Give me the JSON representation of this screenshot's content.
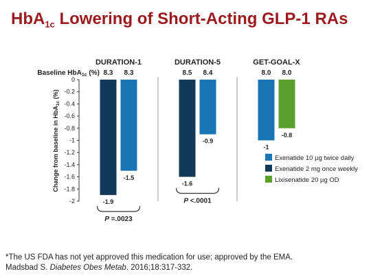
{
  "slide": {
    "title_prefix": "HbA",
    "title_sub": "1c",
    "title_suffix": " Lowering of Short-Acting GLP-1 RAs"
  },
  "chart_data": {
    "type": "bar",
    "ylabel_prefix": "Change from baseline in HbA",
    "ylabel_sub": "1c",
    "ylabel_suffix": " (%)",
    "ylim": [
      -2,
      0
    ],
    "yticks": [
      "0",
      "-0.2",
      "-0.4",
      "-0.6",
      "-0.8",
      "-1",
      "-1.2",
      "-1.4",
      "-1.6",
      "-1.8",
      "-2"
    ],
    "baseline_label_prefix": "Baseline HbA",
    "baseline_label_sub": "1c",
    "baseline_label_suffix": " (%)",
    "colors": {
      "Exenatide 10 µg twice daily": "#1a75b5",
      "Exenatide 2 mg once weekly": "#12395a",
      "Lixisenatide 20 µg OD": "#5aa02c"
    },
    "groups": [
      {
        "name": "DURATION-1",
        "bars": [
          {
            "series": "Exenatide 2 mg once weekly",
            "value": -1.9,
            "value_label": "-1.9",
            "baseline": "8.3"
          },
          {
            "series": "Exenatide 10 µg twice daily",
            "value": -1.5,
            "value_label": "-1.5",
            "baseline": "8.3"
          }
        ],
        "p_value": "P =.0023"
      },
      {
        "name": "DURATION-5",
        "bars": [
          {
            "series": "Exenatide 2 mg once weekly",
            "value": -1.6,
            "value_label": "-1.6",
            "baseline": "8.5"
          },
          {
            "series": "Exenatide 10 µg twice daily",
            "value": -0.9,
            "value_label": "-0.9",
            "baseline": "8.4"
          }
        ],
        "p_value": "P <.0001"
      },
      {
        "name": "GET-GOAL-X",
        "bars": [
          {
            "series": "Exenatide 10 µg twice daily",
            "value": -1.0,
            "value_label": "-1",
            "baseline": "8.0"
          },
          {
            "series": "Lixisenatide 20 µg OD",
            "value": -0.8,
            "value_label": "-0.8",
            "baseline": "8.0"
          }
        ],
        "p_value": ""
      }
    ],
    "legend": {
      "placement": "right",
      "entries": [
        {
          "label": "Exenatide 10 µg twice daily",
          "color": "#1a75b5"
        },
        {
          "label": "Exenatide 2 mg once weekly",
          "color": "#12395a"
        },
        {
          "label": "Lixisenatide 20 µg OD",
          "color": "#5aa02c"
        }
      ]
    },
    "grid": false
  },
  "footnote": {
    "line1": "*The US FDA has not yet approved this medication for use; approved by the EMA.",
    "line2_author": "Madsbad S. ",
    "line2_journal": "Diabetes Obes Metab",
    "line2_rest": ". 2016;18:317-332."
  }
}
